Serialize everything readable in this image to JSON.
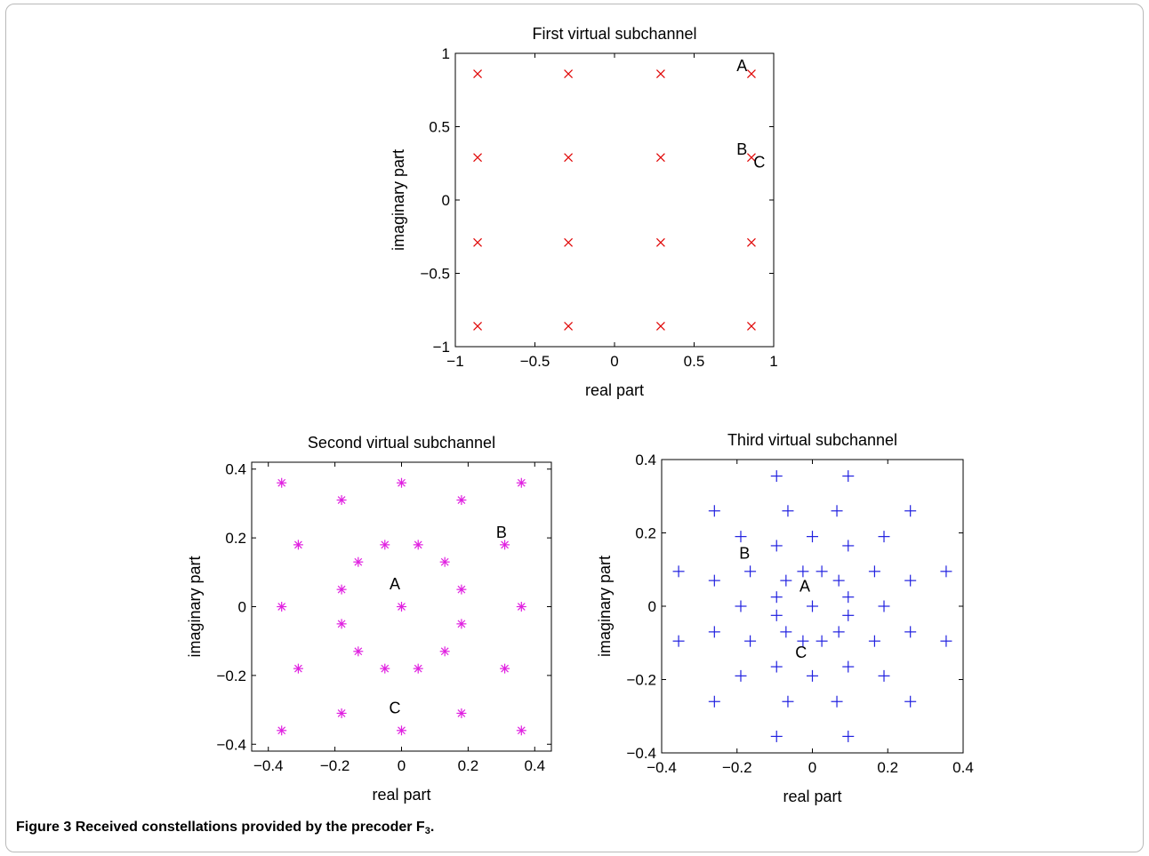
{
  "caption": {
    "label": "Figure 3",
    "text": "Received constellations provided by the precoder",
    "variable": "F",
    "subscript": "3",
    "end": "."
  },
  "chart_data": [
    {
      "type": "scatter",
      "title": "First virtual subchannel",
      "xlabel": "real part",
      "ylabel": "imaginary part",
      "xlim": [
        -1,
        1
      ],
      "ylim": [
        -1,
        1
      ],
      "xticks": [
        -1,
        -0.5,
        0,
        0.5,
        1
      ],
      "xtick_labels": [
        "−1",
        "−0.5",
        "0",
        "0.5",
        "1"
      ],
      "yticks": [
        -1,
        -0.5,
        0,
        0.5,
        1
      ],
      "ytick_labels": [
        "−1",
        "−0.5",
        "0",
        "0.5",
        "1"
      ],
      "marker": "x",
      "color": "#e00000",
      "grid": false,
      "points": [
        [
          -0.86,
          0.86
        ],
        [
          -0.29,
          0.86
        ],
        [
          0.29,
          0.86
        ],
        [
          0.86,
          0.86
        ],
        [
          -0.86,
          0.29
        ],
        [
          -0.29,
          0.29
        ],
        [
          0.29,
          0.29
        ],
        [
          0.86,
          0.29
        ],
        [
          -0.86,
          -0.29
        ],
        [
          -0.29,
          -0.29
        ],
        [
          0.29,
          -0.29
        ],
        [
          0.86,
          -0.29
        ],
        [
          -0.86,
          -0.86
        ],
        [
          -0.29,
          -0.86
        ],
        [
          0.29,
          -0.86
        ],
        [
          0.86,
          -0.86
        ]
      ],
      "annotations": [
        {
          "text": "A",
          "x": 0.8,
          "y": 0.88
        },
        {
          "text": "B",
          "x": 0.8,
          "y": 0.31
        },
        {
          "text": "C",
          "x": 0.91,
          "y": 0.22
        }
      ]
    },
    {
      "type": "scatter",
      "title": "Second virtual subchannel",
      "xlabel": "real part",
      "ylabel": "imaginary part",
      "xlim": [
        -0.45,
        0.45
      ],
      "ylim": [
        -0.42,
        0.42
      ],
      "xticks": [
        -0.4,
        -0.2,
        0,
        0.2,
        0.4
      ],
      "xtick_labels": [
        "−0.4",
        "−0.2",
        "0",
        "0.2",
        "0.4"
      ],
      "yticks": [
        -0.4,
        -0.2,
        0,
        0.2,
        0.4
      ],
      "ytick_labels": [
        "−0.4",
        "−0.2",
        "0",
        "0.2",
        "0.4"
      ],
      "marker": "*",
      "color": "#e020e0",
      "grid": false,
      "points": [
        [
          -0.36,
          0.36
        ],
        [
          0,
          0.36
        ],
        [
          0.36,
          0.36
        ],
        [
          -0.18,
          0.31
        ],
        [
          0.18,
          0.31
        ],
        [
          -0.31,
          0.18
        ],
        [
          -0.05,
          0.18
        ],
        [
          0.05,
          0.18
        ],
        [
          0.31,
          0.18
        ],
        [
          -0.13,
          0.13
        ],
        [
          0.13,
          0.13
        ],
        [
          -0.18,
          0.05
        ],
        [
          0.18,
          0.05
        ],
        [
          -0.36,
          0
        ],
        [
          0,
          0
        ],
        [
          0.36,
          0
        ],
        [
          -0.18,
          -0.05
        ],
        [
          0.18,
          -0.05
        ],
        [
          -0.13,
          -0.13
        ],
        [
          0.13,
          -0.13
        ],
        [
          -0.31,
          -0.18
        ],
        [
          -0.05,
          -0.18
        ],
        [
          0.05,
          -0.18
        ],
        [
          0.31,
          -0.18
        ],
        [
          -0.18,
          -0.31
        ],
        [
          0.18,
          -0.31
        ],
        [
          -0.36,
          -0.36
        ],
        [
          0,
          -0.36
        ],
        [
          0.36,
          -0.36
        ]
      ],
      "annotations": [
        {
          "text": "A",
          "x": -0.02,
          "y": 0.05
        },
        {
          "text": "B",
          "x": 0.3,
          "y": 0.2
        },
        {
          "text": "C",
          "x": -0.02,
          "y": -0.31
        }
      ]
    },
    {
      "type": "scatter",
      "title": "Third virtual subchannel",
      "xlabel": "real part",
      "ylabel": "imaginary part",
      "xlim": [
        -0.4,
        0.4
      ],
      "ylim": [
        -0.4,
        0.4
      ],
      "xticks": [
        -0.4,
        -0.2,
        0,
        0.2,
        0.4
      ],
      "xtick_labels": [
        "−0.4",
        "−0.2",
        "0",
        "0.2",
        "0.4"
      ],
      "yticks": [
        -0.4,
        -0.2,
        0,
        0.2,
        0.4
      ],
      "ytick_labels": [
        "−0.4",
        "−0.2",
        "0",
        "0.2",
        "0.4"
      ],
      "marker": "+",
      "color": "#2020e0",
      "grid": false,
      "points": [
        [
          -0.095,
          0.355
        ],
        [
          0.095,
          0.355
        ],
        [
          -0.26,
          0.26
        ],
        [
          -0.065,
          0.26
        ],
        [
          0.065,
          0.26
        ],
        [
          0.26,
          0.26
        ],
        [
          -0.19,
          0.19
        ],
        [
          0,
          0.19
        ],
        [
          0.19,
          0.19
        ],
        [
          -0.095,
          0.165
        ],
        [
          0.095,
          0.165
        ],
        [
          -0.355,
          0.095
        ],
        [
          -0.165,
          0.095
        ],
        [
          -0.025,
          0.095
        ],
        [
          0.025,
          0.095
        ],
        [
          0.165,
          0.095
        ],
        [
          0.355,
          0.095
        ],
        [
          -0.26,
          0.07
        ],
        [
          -0.07,
          0.07
        ],
        [
          0.07,
          0.07
        ],
        [
          0.26,
          0.07
        ],
        [
          -0.095,
          0.025
        ],
        [
          0.095,
          0.025
        ],
        [
          -0.19,
          0
        ],
        [
          0,
          0
        ],
        [
          0.19,
          0
        ],
        [
          -0.095,
          -0.025
        ],
        [
          0.095,
          -0.025
        ],
        [
          -0.26,
          -0.07
        ],
        [
          -0.07,
          -0.07
        ],
        [
          0.07,
          -0.07
        ],
        [
          0.26,
          -0.07
        ],
        [
          -0.355,
          -0.095
        ],
        [
          -0.165,
          -0.095
        ],
        [
          -0.025,
          -0.095
        ],
        [
          0.025,
          -0.095
        ],
        [
          0.165,
          -0.095
        ],
        [
          0.355,
          -0.095
        ],
        [
          -0.095,
          -0.165
        ],
        [
          0.095,
          -0.165
        ],
        [
          -0.19,
          -0.19
        ],
        [
          0,
          -0.19
        ],
        [
          0.19,
          -0.19
        ],
        [
          -0.26,
          -0.26
        ],
        [
          -0.065,
          -0.26
        ],
        [
          0.065,
          -0.26
        ],
        [
          0.26,
          -0.26
        ],
        [
          -0.095,
          -0.355
        ],
        [
          0.095,
          -0.355
        ]
      ],
      "annotations": [
        {
          "text": "A",
          "x": -0.02,
          "y": 0.04
        },
        {
          "text": "B",
          "x": -0.18,
          "y": 0.13
        },
        {
          "text": "C",
          "x": -0.03,
          "y": -0.14
        }
      ]
    }
  ]
}
